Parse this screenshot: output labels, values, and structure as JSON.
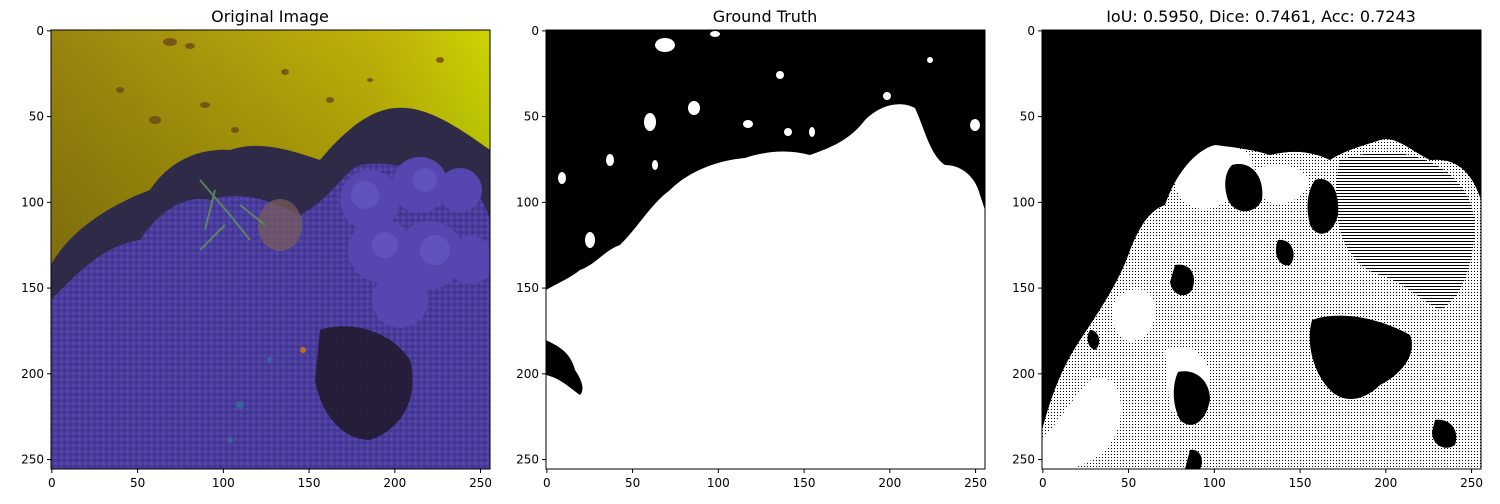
{
  "panels": [
    {
      "id": "original",
      "title": "Original Image",
      "x_ticks": [
        "0",
        "50",
        "100",
        "150",
        "200",
        "250"
      ],
      "y_ticks": [
        "0",
        "50",
        "100",
        "150",
        "200",
        "250"
      ]
    },
    {
      "id": "ground-truth",
      "title": "Ground Truth",
      "x_ticks": [
        "0",
        "50",
        "100",
        "150",
        "200",
        "250"
      ],
      "y_ticks": [
        "0",
        "50",
        "100",
        "150",
        "200",
        "250"
      ]
    },
    {
      "id": "prediction",
      "title": "IoU: 0.5950, Dice: 0.7461, Acc: 0.7243",
      "x_ticks": [
        "0",
        "50",
        "100",
        "150",
        "200",
        "250"
      ],
      "y_ticks": [
        "0",
        "50",
        "100",
        "150",
        "200",
        "250"
      ]
    }
  ],
  "axis": {
    "tick_values": [
      0,
      50,
      100,
      150,
      200,
      250
    ],
    "pixel_range": [
      0,
      256
    ]
  },
  "colors": {
    "water_top_left": "#a08a10",
    "water_top_right": "#d8f000",
    "water_bottom": "#6a4a10",
    "coral_purple": "#4a3c9c",
    "coral_dark": "#2a2040",
    "algae_green": "#4e7a52",
    "mask_fg": "#ffffff",
    "mask_bg": "#000000"
  }
}
